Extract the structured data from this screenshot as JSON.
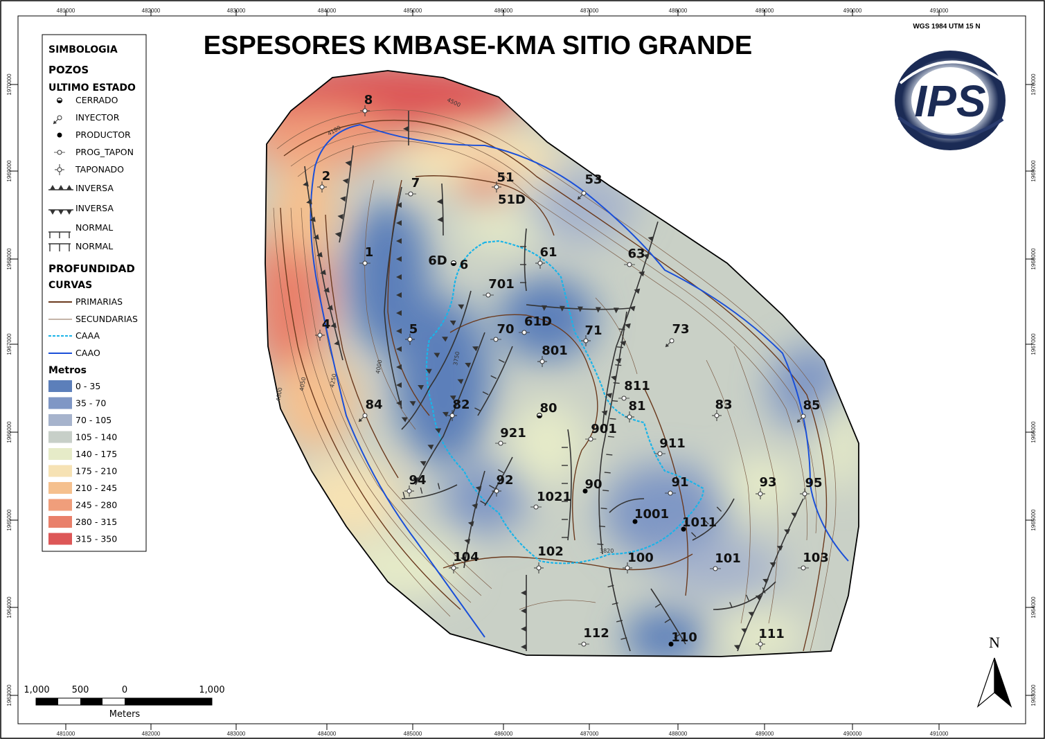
{
  "title": "ESPESORES KMBASE-KMA SITIO GRANDE",
  "datum": "WGS 1984 UTM 15 N",
  "logo_text": "IPS",
  "north_label": "N",
  "x_ticks": [
    "481000",
    "482000",
    "483000",
    "484000",
    "485000",
    "486000",
    "487000",
    "488000",
    "489000",
    "490000",
    "491000"
  ],
  "y_ticks": [
    "1970000",
    "1969000",
    "1968000",
    "1967000",
    "1966000",
    "1965000",
    "1964000",
    "1963000"
  ],
  "legend": {
    "title": "SIMBOLOGIA",
    "wells_head": "POZOS",
    "status_head": "ULTIMO ESTADO",
    "status_items": [
      {
        "label": "CERRADO",
        "icon": "cerrado-icon"
      },
      {
        "label": "INYECTOR",
        "icon": "inyector-icon"
      },
      {
        "label": "PRODUCTOR",
        "icon": "productor-icon"
      },
      {
        "label": "PROG_TAPON",
        "icon": "prog-tapon-icon"
      },
      {
        "label": "TAPONADO",
        "icon": "taponado-icon"
      }
    ],
    "fault_items": [
      {
        "label": "INVERSA",
        "icon": "inversa-up-icon"
      },
      {
        "label": "INVERSA",
        "icon": "inversa-down-icon"
      },
      {
        "label": "NORMAL",
        "icon": "normal-up-icon"
      },
      {
        "label": "NORMAL",
        "icon": "normal-down-icon"
      }
    ],
    "depth_head": "PROFUNDIDAD",
    "curves_head": "CURVAS",
    "curve_items": [
      {
        "label": "PRIMARIAS",
        "color": "#6b3a1e"
      },
      {
        "label": "SECUNDARIAS",
        "color": "#8a6a50"
      },
      {
        "label": "CAAA",
        "color": "#1ab4e8"
      },
      {
        "label": "CAAO",
        "color": "#1a4fd8"
      }
    ],
    "meters_head": "Metros",
    "classes": [
      {
        "label": "0 - 35",
        "color": "#5c7fba"
      },
      {
        "label": "35 - 70",
        "color": "#7f97c5"
      },
      {
        "label": "70 - 105",
        "color": "#a6b3cc"
      },
      {
        "label": "105 - 140",
        "color": "#c7cfc8"
      },
      {
        "label": "140 - 175",
        "color": "#e6ebc8"
      },
      {
        "label": "175 - 210",
        "color": "#f6e2b4"
      },
      {
        "label": "210 - 245",
        "color": "#f5c08e"
      },
      {
        "label": "245 - 280",
        "color": "#f09e7b"
      },
      {
        "label": "280 - 315",
        "color": "#e9806a"
      },
      {
        "label": "315 - 350",
        "color": "#dd5757"
      }
    ]
  },
  "scalebar": {
    "labels": [
      "1,000",
      "500",
      "0",
      "1,000"
    ],
    "unit": "Meters"
  },
  "contour_labels": [
    "4500",
    "4180",
    "4000",
    "3750",
    "3820",
    "4250",
    "4050",
    "4600"
  ],
  "wells": [
    {
      "name": "8",
      "status": "taponado"
    },
    {
      "name": "2",
      "status": "taponado"
    },
    {
      "name": "7",
      "status": "prog_tapon"
    },
    {
      "name": "51",
      "status": "taponado"
    },
    {
      "name": "51D",
      "status": "none"
    },
    {
      "name": "53",
      "status": "inyector"
    },
    {
      "name": "1",
      "status": "prog_tapon"
    },
    {
      "name": "6D",
      "status": "cerrado"
    },
    {
      "name": "6",
      "status": "none"
    },
    {
      "name": "61",
      "status": "taponado"
    },
    {
      "name": "63",
      "status": "prog_tapon"
    },
    {
      "name": "701",
      "status": "prog_tapon"
    },
    {
      "name": "4",
      "status": "taponado"
    },
    {
      "name": "5",
      "status": "taponado"
    },
    {
      "name": "70",
      "status": "prog_tapon"
    },
    {
      "name": "61D",
      "status": "prog_tapon"
    },
    {
      "name": "71",
      "status": "taponado"
    },
    {
      "name": "73",
      "status": "inyector"
    },
    {
      "name": "801",
      "status": "taponado"
    },
    {
      "name": "811",
      "status": "prog_tapon"
    },
    {
      "name": "81",
      "status": "taponado"
    },
    {
      "name": "84",
      "status": "inyector"
    },
    {
      "name": "82",
      "status": "taponado"
    },
    {
      "name": "80",
      "status": "cerrado"
    },
    {
      "name": "83",
      "status": "taponado"
    },
    {
      "name": "85",
      "status": "inyector"
    },
    {
      "name": "921",
      "status": "prog_tapon"
    },
    {
      "name": "901",
      "status": "prog_tapon"
    },
    {
      "name": "911",
      "status": "prog_tapon"
    },
    {
      "name": "94",
      "status": "taponado"
    },
    {
      "name": "92",
      "status": "taponado"
    },
    {
      "name": "90",
      "status": "productor"
    },
    {
      "name": "1021",
      "status": "prog_tapon"
    },
    {
      "name": "91",
      "status": "prog_tapon"
    },
    {
      "name": "93",
      "status": "taponado"
    },
    {
      "name": "95",
      "status": "taponado"
    },
    {
      "name": "1001",
      "status": "productor"
    },
    {
      "name": "1011",
      "status": "productor"
    },
    {
      "name": "104",
      "status": "taponado"
    },
    {
      "name": "102",
      "status": "taponado"
    },
    {
      "name": "100",
      "status": "taponado"
    },
    {
      "name": "101",
      "status": "prog_tapon"
    },
    {
      "name": "103",
      "status": "prog_tapon"
    },
    {
      "name": "112",
      "status": "prog_tapon"
    },
    {
      "name": "110",
      "status": "productor"
    },
    {
      "name": "111",
      "status": "taponado"
    }
  ]
}
